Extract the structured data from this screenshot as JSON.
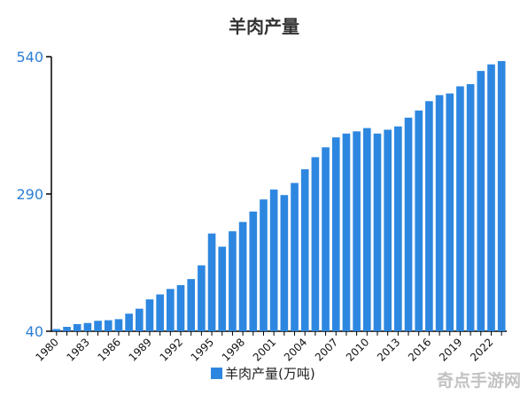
{
  "chart_data": {
    "type": "bar",
    "title": "羊肉产量",
    "categories": [
      "1980",
      "1981",
      "1982",
      "1983",
      "1984",
      "1985",
      "1986",
      "1987",
      "1988",
      "1989",
      "1990",
      "1991",
      "1992",
      "1993",
      "1994",
      "1995",
      "1996",
      "1997",
      "1998",
      "1999",
      "2000",
      "2001",
      "2002",
      "2003",
      "2004",
      "2005",
      "2006",
      "2007",
      "2008",
      "2009",
      "2010",
      "2011",
      "2012",
      "2013",
      "2014",
      "2015",
      "2016",
      "2017",
      "2018",
      "2019",
      "2020",
      "2021",
      "2022",
      "2023"
    ],
    "series": [
      {
        "name": "羊肉产量(万吨)",
        "values": [
          44,
          48,
          53,
          55,
          59,
          60,
          62,
          72,
          81,
          98,
          107,
          117,
          124,
          135,
          160,
          218,
          194,
          222,
          239,
          258,
          280,
          298,
          288,
          310,
          335,
          357,
          375,
          393,
          400,
          404,
          410,
          400,
          407,
          413,
          429,
          442,
          459,
          470,
          473,
          486,
          490,
          514,
          526,
          532
        ]
      }
    ],
    "ylim": [
      40,
      540
    ],
    "yticks": [
      "40",
      "290",
      "540"
    ],
    "xtick_labels": [
      "1980",
      "1983",
      "1986",
      "1989",
      "1992",
      "1995",
      "1998",
      "2001",
      "2004",
      "2007",
      "2010",
      "2013",
      "2016",
      "2019",
      "2022"
    ],
    "legend": "bottom",
    "grid": false,
    "colors": {
      "bar": "#2d87e0",
      "ytick": "#2b7fd4",
      "axis": "#000000"
    }
  },
  "watermark": {
    "text": "奇点手游网"
  }
}
